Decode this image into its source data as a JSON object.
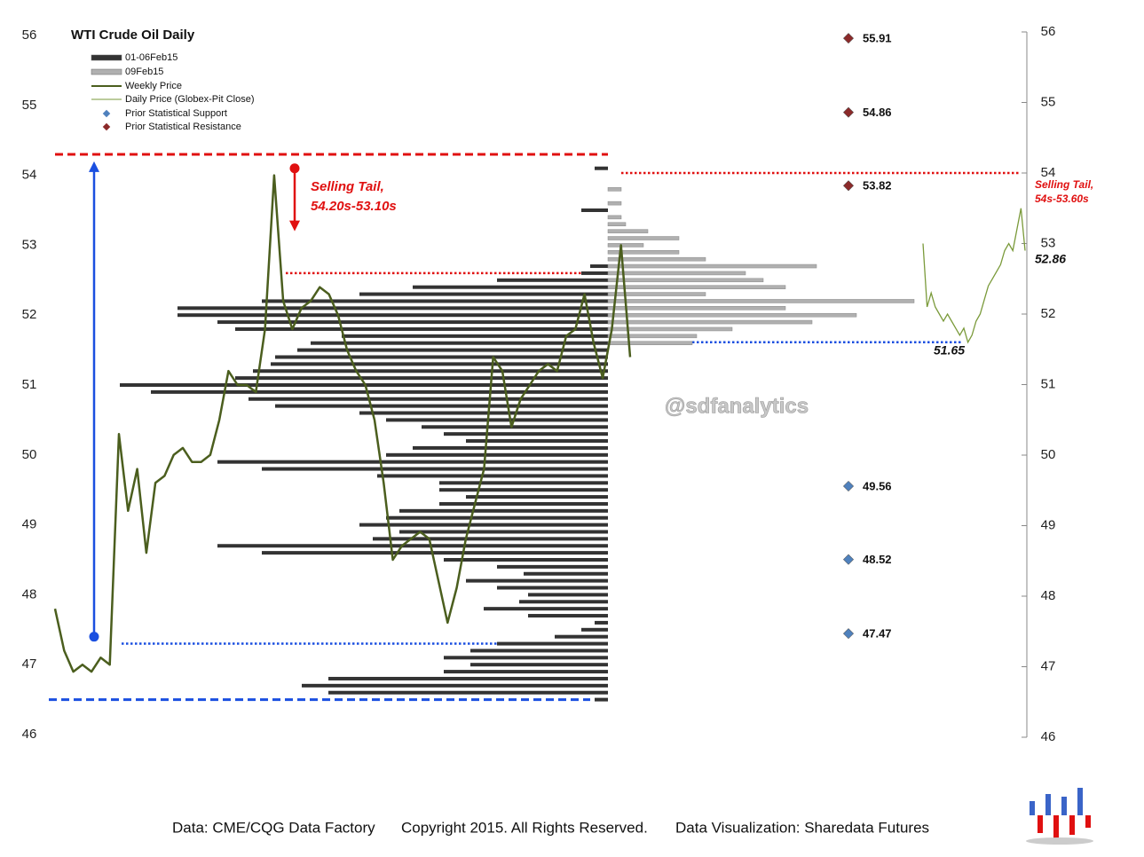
{
  "chart_data": {
    "type": "price-profile",
    "title": "WTI Crude Oil Daily",
    "ylim": [
      46,
      56
    ],
    "yticks": [
      46,
      47,
      48,
      49,
      50,
      51,
      52,
      53,
      54,
      55,
      56
    ],
    "y2lim": [
      46,
      56
    ],
    "y2ticks": [
      46,
      47,
      48,
      49,
      50,
      51,
      52,
      53,
      54,
      55,
      56
    ],
    "series": [
      {
        "name": "01-06Feb15",
        "color": "#333333",
        "kind": "profile-left",
        "levels": [
          46.5,
          46.6,
          46.7,
          46.8,
          46.9,
          47.0,
          47.1,
          47.2,
          47.3,
          47.4,
          47.5,
          47.6,
          47.7,
          47.8,
          47.9,
          48.0,
          48.1,
          48.2,
          48.3,
          48.4,
          48.5,
          48.6,
          48.7,
          48.8,
          48.9,
          49.0,
          49.1,
          49.2,
          49.3,
          49.4,
          49.5,
          49.6,
          49.7,
          49.8,
          49.9,
          50.0,
          50.1,
          50.2,
          50.3,
          50.4,
          50.5,
          50.6,
          50.7,
          50.8,
          50.9,
          51.0,
          51.1,
          51.2,
          51.3,
          51.4,
          51.5,
          51.6,
          51.7,
          51.8,
          51.9,
          52.0,
          52.1,
          52.2,
          52.3,
          52.4,
          52.5,
          52.6,
          52.7,
          53.5,
          54.1
        ],
        "values": [
          15,
          315,
          345,
          315,
          185,
          155,
          185,
          155,
          125,
          60,
          30,
          15,
          90,
          140,
          100,
          90,
          125,
          160,
          95,
          125,
          185,
          390,
          440,
          265,
          235,
          280,
          250,
          235,
          190,
          160,
          190,
          190,
          260,
          390,
          440,
          250,
          220,
          160,
          185,
          210,
          250,
          280,
          375,
          405,
          515,
          550,
          420,
          400,
          380,
          375,
          350,
          335,
          300,
          420,
          440,
          485,
          485,
          390,
          280,
          220,
          125,
          30,
          20,
          30,
          15
        ]
      },
      {
        "name": "09Feb15",
        "color": "#b0b0b0",
        "kind": "profile-right",
        "levels": [
          51.6,
          51.7,
          51.8,
          51.9,
          52.0,
          52.1,
          52.2,
          52.3,
          52.4,
          52.5,
          52.6,
          52.7,
          52.8,
          52.9,
          53.0,
          53.1,
          53.2,
          53.3,
          53.4,
          53.6,
          53.8
        ],
        "values": [
          95,
          100,
          140,
          230,
          280,
          200,
          345,
          110,
          200,
          175,
          155,
          235,
          110,
          80,
          40,
          80,
          45,
          20,
          15,
          15,
          15
        ]
      },
      {
        "name": "Weekly Price",
        "color": "#4b5e1e",
        "kind": "weekly",
        "values": [
          47.8,
          47.2,
          46.9,
          47.0,
          46.9,
          47.1,
          47.0,
          50.3,
          49.2,
          49.8,
          48.6,
          49.6,
          49.7,
          50.0,
          50.1,
          49.9,
          49.9,
          50.0,
          50.5,
          51.2,
          51.0,
          51.0,
          50.9,
          51.8,
          54.0,
          52.2,
          51.8,
          52.1,
          52.2,
          52.4,
          52.3,
          52.0,
          51.5,
          51.2,
          51.0,
          50.5,
          49.6,
          48.5,
          48.7,
          48.8,
          48.9,
          48.8,
          48.2,
          47.6,
          48.1,
          48.8,
          49.3,
          49.8,
          51.4,
          51.2,
          50.4,
          50.8,
          51.0,
          51.2,
          51.3,
          51.2,
          51.7,
          51.8,
          52.3,
          51.6,
          51.1,
          51.8,
          53.0,
          51.4
        ]
      },
      {
        "name": "Daily Price (Globex-Pit Close)",
        "color": "#7a9a3a",
        "kind": "daily",
        "axis": "y2",
        "values": [
          53.0,
          52.1,
          52.3,
          52.1,
          52.0,
          51.9,
          52.0,
          51.9,
          51.8,
          51.7,
          51.8,
          51.6,
          51.7,
          51.9,
          52.0,
          52.2,
          52.4,
          52.5,
          52.6,
          52.7,
          52.9,
          53.0,
          52.9,
          53.2,
          53.5,
          52.9
        ]
      },
      {
        "name": "Prior Statistical Support",
        "color": "#4f81bd",
        "kind": "levels",
        "axis": "y2",
        "values": [
          49.56,
          48.52,
          47.47
        ]
      },
      {
        "name": "Prior Statistical Resistance",
        "color": "#8b2a2a",
        "kind": "levels",
        "axis": "y2",
        "values": [
          55.91,
          54.86,
          53.82
        ]
      }
    ],
    "reference_lines": [
      {
        "value": 54.3,
        "color": "#e01010",
        "style": "dashed"
      },
      {
        "value": 46.5,
        "color": "#1a4fe0",
        "style": "dashed"
      },
      {
        "value": 52.6,
        "color": "#e01010",
        "style": "dotted"
      },
      {
        "value": 47.3,
        "color": "#1a4fe0",
        "style": "dotted"
      },
      {
        "value": 51.6,
        "color": "#1a4fe0",
        "style": "dotted"
      },
      {
        "value": 54.0,
        "color": "#e01010",
        "style": "dotted"
      }
    ],
    "arrows": [
      {
        "from": 47.4,
        "to": 54.2,
        "color": "#1a4fe0"
      },
      {
        "from": 54.1,
        "to": 53.2,
        "color": "#e01010"
      }
    ],
    "annotations": [
      {
        "lines": [
          "Selling Tail,",
          "54.20s-53.10s"
        ],
        "color": "#e01010"
      },
      {
        "lines": [
          "Selling Tail,",
          "54s-53.60s"
        ],
        "color": "#e01010"
      },
      {
        "lines": [
          "52.86"
        ],
        "color": "#111111"
      },
      {
        "lines": [
          "51.65"
        ],
        "color": "#111111"
      },
      {
        "lines": [
          "@sdfanalytics"
        ],
        "color": "#c8c8c8"
      }
    ],
    "footer": [
      "Data: CME/CQG Data Factory",
      "Copyright 2015. All Rights Reserved.",
      "Data Visualization: Sharedata Futures"
    ]
  }
}
